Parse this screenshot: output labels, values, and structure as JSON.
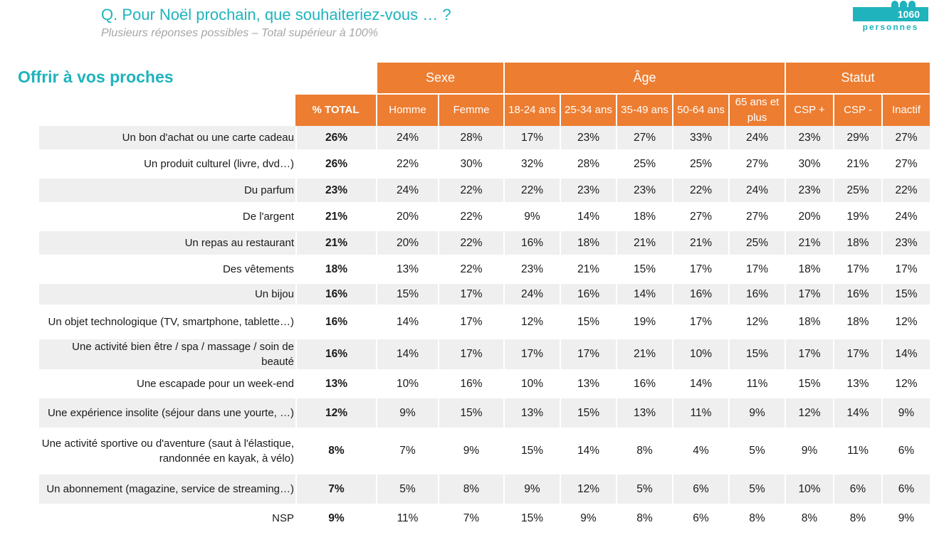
{
  "header": {
    "question": "Q. Pour Noël prochain, que souhaiteriez-vous …  ?",
    "subtitle": "Plusieurs réponses possibles – Total supérieur à 100%",
    "sample_count": "1060",
    "sample_label": "personnes",
    "section_title": "Offrir à vos proches"
  },
  "colors": {
    "accent_teal": "#1fb3bd",
    "header_orange": "#ed7d31",
    "stripe_gray": "#efefef"
  },
  "icons": {
    "badge": "people-icon"
  },
  "table": {
    "groups": [
      "Sexe",
      "Âge",
      "Statut"
    ],
    "columns": [
      "% TOTAL",
      "Homme",
      "Femme",
      "18-24 ans",
      "25-34 ans",
      "35-49 ans",
      "50-64 ans",
      "65 ans et plus",
      "CSP +",
      "CSP -",
      "Inactif"
    ],
    "rows": [
      {
        "label": "Un bon d'achat ou une carte cadeau",
        "values": [
          "26%",
          "24%",
          "28%",
          "17%",
          "23%",
          "27%",
          "33%",
          "24%",
          "23%",
          "29%",
          "27%"
        ]
      },
      {
        "label": "Un produit culturel (livre, dvd…)",
        "values": [
          "26%",
          "22%",
          "30%",
          "32%",
          "28%",
          "25%",
          "25%",
          "27%",
          "30%",
          "21%",
          "27%"
        ]
      },
      {
        "label": "Du parfum",
        "values": [
          "23%",
          "24%",
          "22%",
          "22%",
          "23%",
          "23%",
          "22%",
          "24%",
          "23%",
          "25%",
          "22%"
        ]
      },
      {
        "label": "De l'argent",
        "values": [
          "21%",
          "20%",
          "22%",
          "9%",
          "14%",
          "18%",
          "27%",
          "27%",
          "20%",
          "19%",
          "24%"
        ]
      },
      {
        "label": "Un repas au restaurant",
        "values": [
          "21%",
          "20%",
          "22%",
          "16%",
          "18%",
          "21%",
          "21%",
          "25%",
          "21%",
          "18%",
          "23%"
        ]
      },
      {
        "label": "Des vêtements",
        "values": [
          "18%",
          "13%",
          "22%",
          "23%",
          "21%",
          "15%",
          "17%",
          "17%",
          "18%",
          "17%",
          "17%"
        ]
      },
      {
        "label": "Un bijou",
        "values": [
          "16%",
          "15%",
          "17%",
          "24%",
          "16%",
          "14%",
          "16%",
          "16%",
          "17%",
          "16%",
          "15%"
        ]
      },
      {
        "label": "Un objet technologique (TV, smartphone, tablette…)",
        "values": [
          "16%",
          "14%",
          "17%",
          "12%",
          "15%",
          "19%",
          "17%",
          "12%",
          "18%",
          "18%",
          "12%"
        ]
      },
      {
        "label": "Une activité bien être / spa / massage / soin de beauté",
        "values": [
          "16%",
          "14%",
          "17%",
          "17%",
          "17%",
          "21%",
          "10%",
          "15%",
          "17%",
          "17%",
          "14%"
        ]
      },
      {
        "label": "Une escapade pour un week-end",
        "values": [
          "13%",
          "10%",
          "16%",
          "10%",
          "13%",
          "16%",
          "14%",
          "11%",
          "15%",
          "13%",
          "12%"
        ]
      },
      {
        "label": "Une expérience insolite (séjour dans une yourte, …)",
        "values": [
          "12%",
          "9%",
          "15%",
          "13%",
          "15%",
          "13%",
          "11%",
          "9%",
          "12%",
          "14%",
          "9%"
        ]
      },
      {
        "label": "Une activité sportive ou d'aventure (saut à l'élastique, randonnée en kayak, à vélo)",
        "values": [
          "8%",
          "7%",
          "9%",
          "15%",
          "14%",
          "8%",
          "4%",
          "5%",
          "9%",
          "11%",
          "6%"
        ]
      },
      {
        "label": "Un abonnement (magazine, service de streaming…)",
        "values": [
          "7%",
          "5%",
          "8%",
          "9%",
          "12%",
          "5%",
          "6%",
          "5%",
          "10%",
          "6%",
          "6%"
        ]
      },
      {
        "label": "NSP",
        "values": [
          "9%",
          "11%",
          "7%",
          "15%",
          "9%",
          "8%",
          "6%",
          "8%",
          "8%",
          "8%",
          "9%"
        ]
      }
    ]
  }
}
